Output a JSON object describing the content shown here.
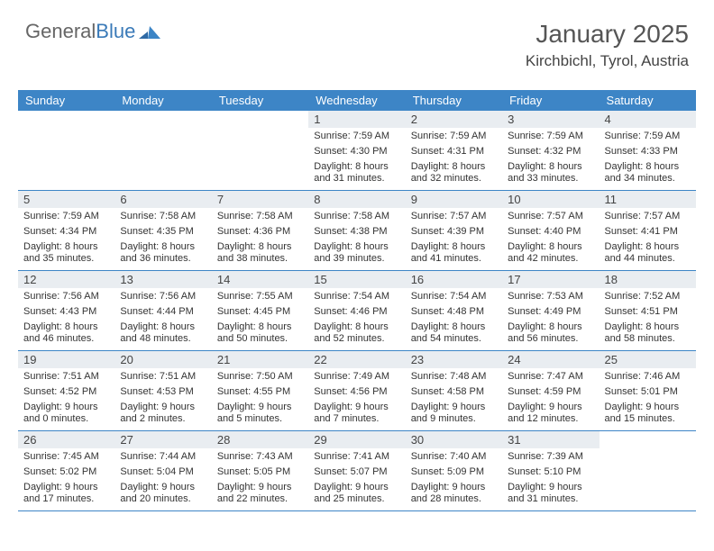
{
  "brand": {
    "part1": "General",
    "part2": "Blue"
  },
  "colors": {
    "header_bg": "#3d85c6",
    "header_text": "#ffffff",
    "daynum_bg": "#e9edf1",
    "border": "#3d85c6",
    "title_color": "#555555",
    "brand_gray": "#666666",
    "brand_blue": "#3a7ab8"
  },
  "title": "January 2025",
  "location": "Kirchbichl, Tyrol, Austria",
  "weekdays": [
    "Sunday",
    "Monday",
    "Tuesday",
    "Wednesday",
    "Thursday",
    "Friday",
    "Saturday"
  ],
  "weeks": [
    [
      {
        "day": "",
        "sunrise": "",
        "sunset": "",
        "daylight": ""
      },
      {
        "day": "",
        "sunrise": "",
        "sunset": "",
        "daylight": ""
      },
      {
        "day": "",
        "sunrise": "",
        "sunset": "",
        "daylight": ""
      },
      {
        "day": "1",
        "sunrise": "Sunrise: 7:59 AM",
        "sunset": "Sunset: 4:30 PM",
        "daylight": "Daylight: 8 hours and 31 minutes."
      },
      {
        "day": "2",
        "sunrise": "Sunrise: 7:59 AM",
        "sunset": "Sunset: 4:31 PM",
        "daylight": "Daylight: 8 hours and 32 minutes."
      },
      {
        "day": "3",
        "sunrise": "Sunrise: 7:59 AM",
        "sunset": "Sunset: 4:32 PM",
        "daylight": "Daylight: 8 hours and 33 minutes."
      },
      {
        "day": "4",
        "sunrise": "Sunrise: 7:59 AM",
        "sunset": "Sunset: 4:33 PM",
        "daylight": "Daylight: 8 hours and 34 minutes."
      }
    ],
    [
      {
        "day": "5",
        "sunrise": "Sunrise: 7:59 AM",
        "sunset": "Sunset: 4:34 PM",
        "daylight": "Daylight: 8 hours and 35 minutes."
      },
      {
        "day": "6",
        "sunrise": "Sunrise: 7:58 AM",
        "sunset": "Sunset: 4:35 PM",
        "daylight": "Daylight: 8 hours and 36 minutes."
      },
      {
        "day": "7",
        "sunrise": "Sunrise: 7:58 AM",
        "sunset": "Sunset: 4:36 PM",
        "daylight": "Daylight: 8 hours and 38 minutes."
      },
      {
        "day": "8",
        "sunrise": "Sunrise: 7:58 AM",
        "sunset": "Sunset: 4:38 PM",
        "daylight": "Daylight: 8 hours and 39 minutes."
      },
      {
        "day": "9",
        "sunrise": "Sunrise: 7:57 AM",
        "sunset": "Sunset: 4:39 PM",
        "daylight": "Daylight: 8 hours and 41 minutes."
      },
      {
        "day": "10",
        "sunrise": "Sunrise: 7:57 AM",
        "sunset": "Sunset: 4:40 PM",
        "daylight": "Daylight: 8 hours and 42 minutes."
      },
      {
        "day": "11",
        "sunrise": "Sunrise: 7:57 AM",
        "sunset": "Sunset: 4:41 PM",
        "daylight": "Daylight: 8 hours and 44 minutes."
      }
    ],
    [
      {
        "day": "12",
        "sunrise": "Sunrise: 7:56 AM",
        "sunset": "Sunset: 4:43 PM",
        "daylight": "Daylight: 8 hours and 46 minutes."
      },
      {
        "day": "13",
        "sunrise": "Sunrise: 7:56 AM",
        "sunset": "Sunset: 4:44 PM",
        "daylight": "Daylight: 8 hours and 48 minutes."
      },
      {
        "day": "14",
        "sunrise": "Sunrise: 7:55 AM",
        "sunset": "Sunset: 4:45 PM",
        "daylight": "Daylight: 8 hours and 50 minutes."
      },
      {
        "day": "15",
        "sunrise": "Sunrise: 7:54 AM",
        "sunset": "Sunset: 4:46 PM",
        "daylight": "Daylight: 8 hours and 52 minutes."
      },
      {
        "day": "16",
        "sunrise": "Sunrise: 7:54 AM",
        "sunset": "Sunset: 4:48 PM",
        "daylight": "Daylight: 8 hours and 54 minutes."
      },
      {
        "day": "17",
        "sunrise": "Sunrise: 7:53 AM",
        "sunset": "Sunset: 4:49 PM",
        "daylight": "Daylight: 8 hours and 56 minutes."
      },
      {
        "day": "18",
        "sunrise": "Sunrise: 7:52 AM",
        "sunset": "Sunset: 4:51 PM",
        "daylight": "Daylight: 8 hours and 58 minutes."
      }
    ],
    [
      {
        "day": "19",
        "sunrise": "Sunrise: 7:51 AM",
        "sunset": "Sunset: 4:52 PM",
        "daylight": "Daylight: 9 hours and 0 minutes."
      },
      {
        "day": "20",
        "sunrise": "Sunrise: 7:51 AM",
        "sunset": "Sunset: 4:53 PM",
        "daylight": "Daylight: 9 hours and 2 minutes."
      },
      {
        "day": "21",
        "sunrise": "Sunrise: 7:50 AM",
        "sunset": "Sunset: 4:55 PM",
        "daylight": "Daylight: 9 hours and 5 minutes."
      },
      {
        "day": "22",
        "sunrise": "Sunrise: 7:49 AM",
        "sunset": "Sunset: 4:56 PM",
        "daylight": "Daylight: 9 hours and 7 minutes."
      },
      {
        "day": "23",
        "sunrise": "Sunrise: 7:48 AM",
        "sunset": "Sunset: 4:58 PM",
        "daylight": "Daylight: 9 hours and 9 minutes."
      },
      {
        "day": "24",
        "sunrise": "Sunrise: 7:47 AM",
        "sunset": "Sunset: 4:59 PM",
        "daylight": "Daylight: 9 hours and 12 minutes."
      },
      {
        "day": "25",
        "sunrise": "Sunrise: 7:46 AM",
        "sunset": "Sunset: 5:01 PM",
        "daylight": "Daylight: 9 hours and 15 minutes."
      }
    ],
    [
      {
        "day": "26",
        "sunrise": "Sunrise: 7:45 AM",
        "sunset": "Sunset: 5:02 PM",
        "daylight": "Daylight: 9 hours and 17 minutes."
      },
      {
        "day": "27",
        "sunrise": "Sunrise: 7:44 AM",
        "sunset": "Sunset: 5:04 PM",
        "daylight": "Daylight: 9 hours and 20 minutes."
      },
      {
        "day": "28",
        "sunrise": "Sunrise: 7:43 AM",
        "sunset": "Sunset: 5:05 PM",
        "daylight": "Daylight: 9 hours and 22 minutes."
      },
      {
        "day": "29",
        "sunrise": "Sunrise: 7:41 AM",
        "sunset": "Sunset: 5:07 PM",
        "daylight": "Daylight: 9 hours and 25 minutes."
      },
      {
        "day": "30",
        "sunrise": "Sunrise: 7:40 AM",
        "sunset": "Sunset: 5:09 PM",
        "daylight": "Daylight: 9 hours and 28 minutes."
      },
      {
        "day": "31",
        "sunrise": "Sunrise: 7:39 AM",
        "sunset": "Sunset: 5:10 PM",
        "daylight": "Daylight: 9 hours and 31 minutes."
      },
      {
        "day": "",
        "sunrise": "",
        "sunset": "",
        "daylight": ""
      }
    ]
  ]
}
